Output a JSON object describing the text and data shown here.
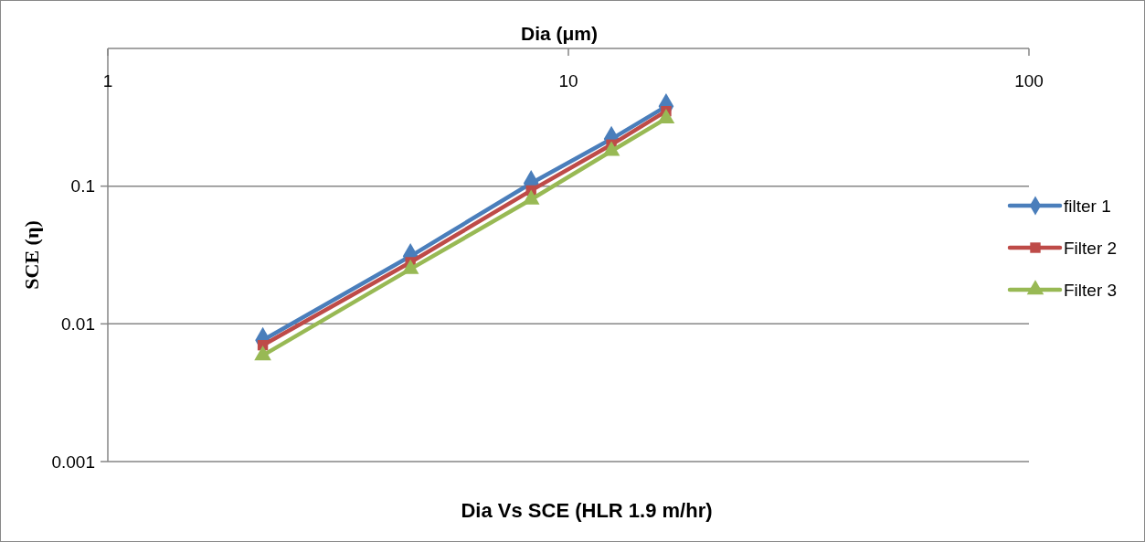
{
  "chart_data": {
    "type": "line",
    "title": "Dia Vs SCE (HLR 1.9 m/hr)",
    "xlabel": "Dia (μm)",
    "ylabel": "SCE (η)",
    "x": [
      2.17,
      4.54,
      8.3,
      12.4,
      16.3
    ],
    "series": [
      {
        "name": "filter 1",
        "color": "#4a7ebb",
        "marker": "diamond",
        "values": [
          0.0076,
          0.031,
          0.105,
          0.22,
          0.38
        ]
      },
      {
        "name": "Filter 2",
        "color": "#be4b48",
        "marker": "square",
        "values": [
          0.007,
          0.028,
          0.093,
          0.2,
          0.35
        ]
      },
      {
        "name": "Filter 3",
        "color": "#98b954",
        "marker": "triangle",
        "values": [
          0.0059,
          0.025,
          0.08,
          0.18,
          0.31
        ]
      }
    ],
    "log": "xy",
    "xlim": [
      1,
      100
    ],
    "xticks": [
      1,
      10,
      100
    ],
    "ylim": [
      0.001,
      1
    ],
    "yticks": [
      0.001,
      0.01,
      0.1
    ],
    "grid": "y",
    "legend": "right",
    "line_style": "solid"
  }
}
